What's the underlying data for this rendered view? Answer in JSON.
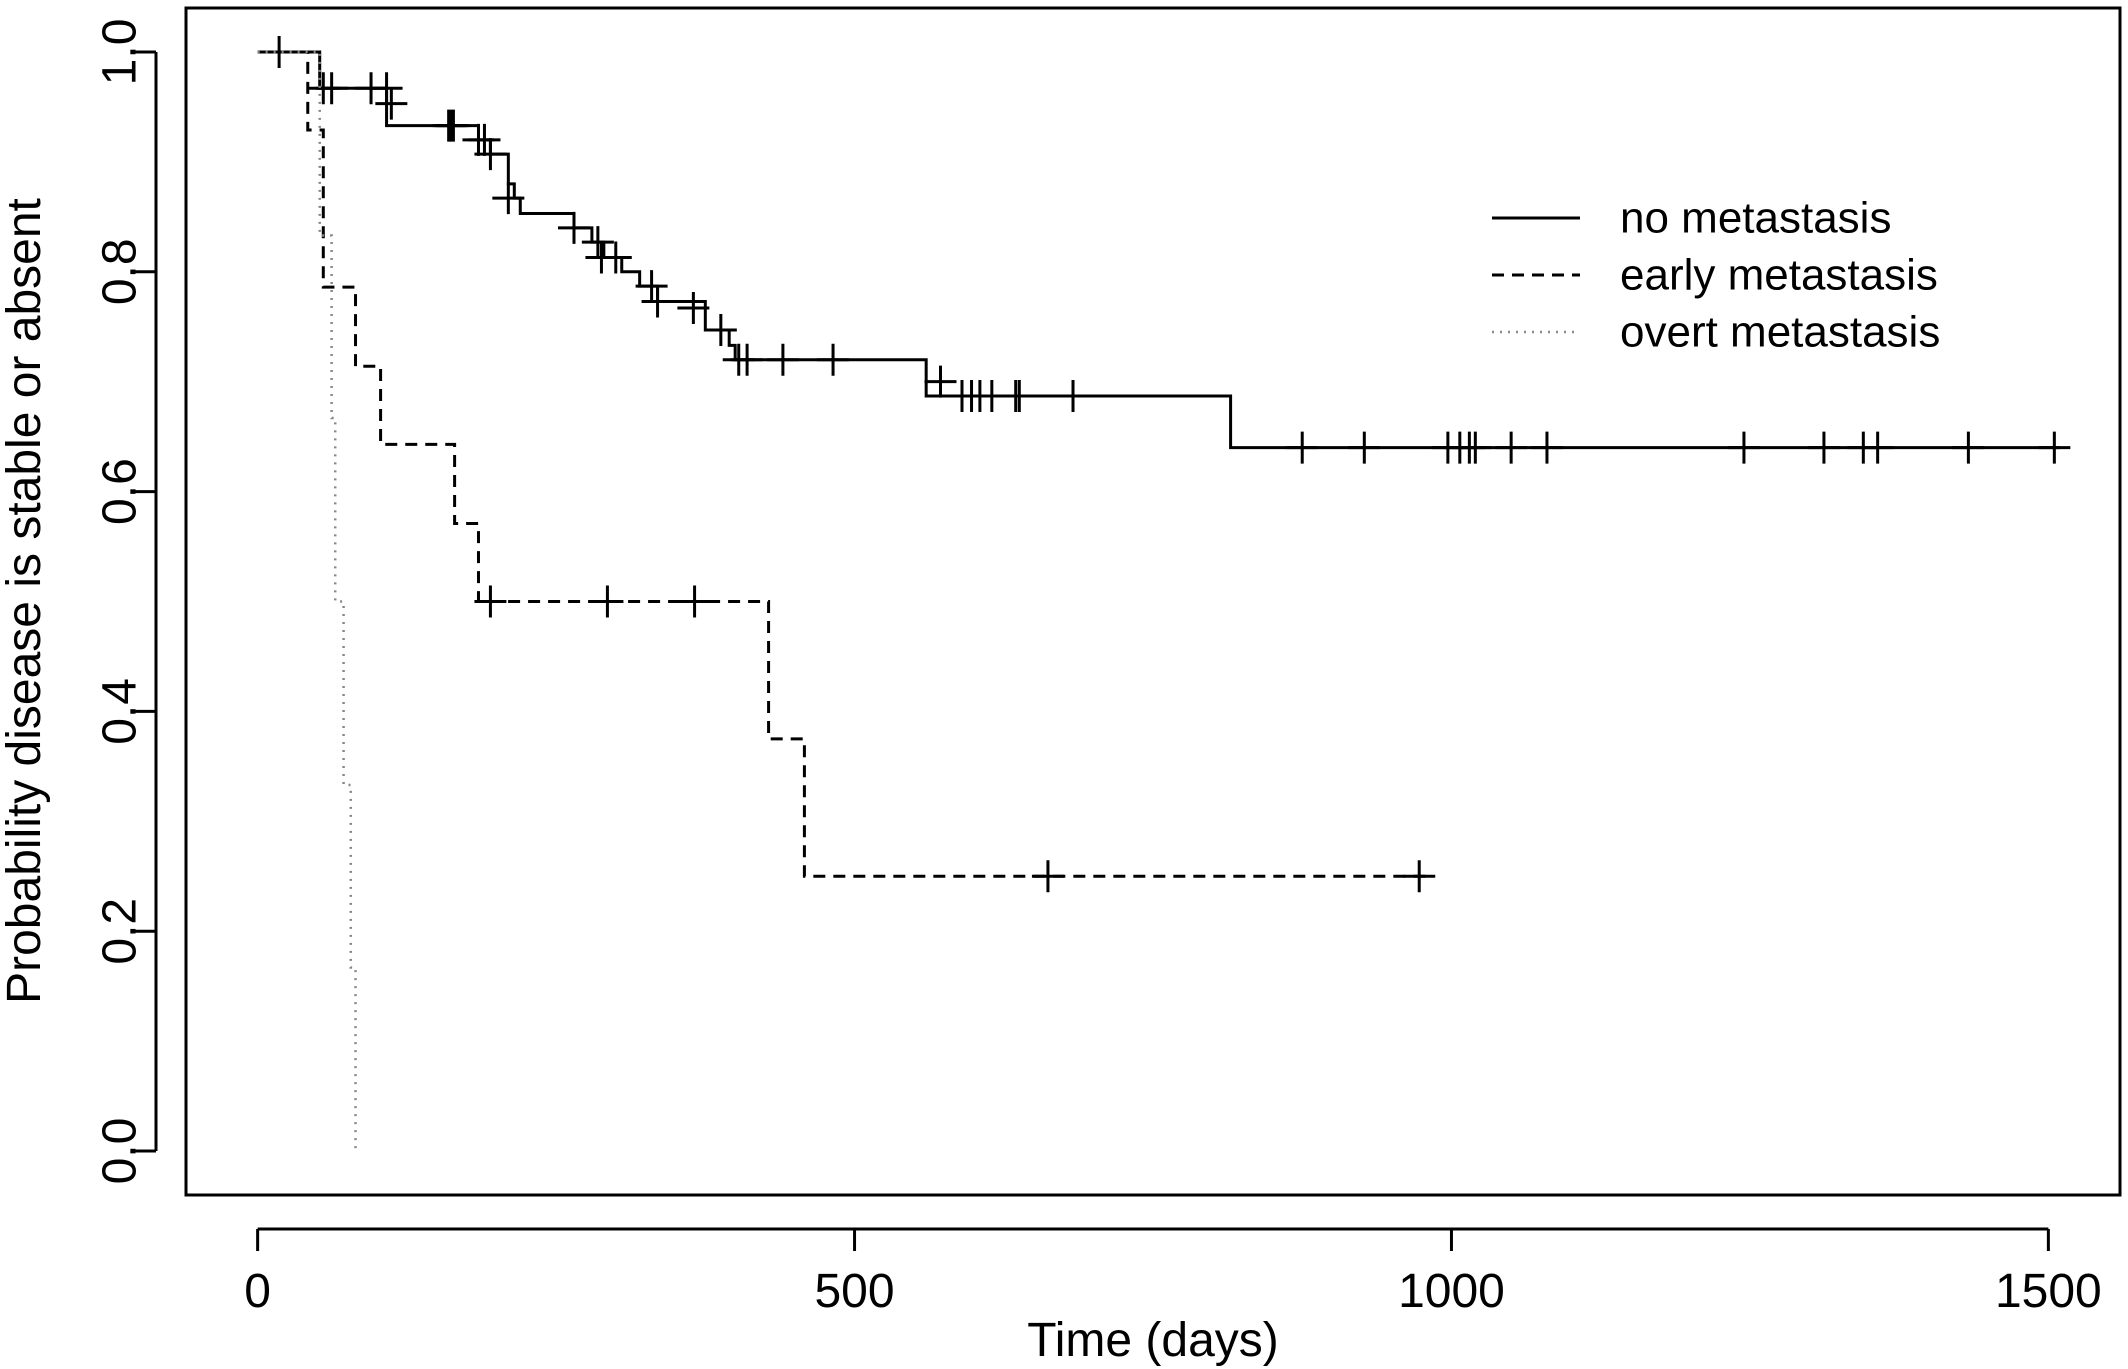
{
  "chart_data": {
    "type": "line",
    "title": "",
    "xlabel": "Time (days)",
    "ylabel": "Probability disease is stable or absent",
    "xlim": [
      -60,
      1560
    ],
    "ylim": [
      -0.04,
      1.04
    ],
    "xticks": [
      0,
      500,
      1000,
      1500
    ],
    "xtick_labels": [
      "0",
      "500",
      "1000",
      "1500"
    ],
    "yticks": [
      0.0,
      0.2,
      0.4,
      0.6,
      0.8,
      1.0
    ],
    "ytick_labels": [
      "0.0",
      "0.2",
      "0.4",
      "0.6",
      "0.8",
      "1.0"
    ],
    "grid": false,
    "legend_position": "top-right",
    "series": [
      {
        "name": "no metastasis",
        "linestyle": "solid",
        "color": "#000000",
        "steps": [
          [
            0,
            1.0
          ],
          [
            52,
            0.967
          ],
          [
            108,
            0.933
          ],
          [
            185,
            0.92
          ],
          [
            195,
            0.907
          ],
          [
            210,
            0.88
          ],
          [
            215,
            0.867
          ],
          [
            220,
            0.853
          ],
          [
            265,
            0.84
          ],
          [
            280,
            0.827
          ],
          [
            290,
            0.813
          ],
          [
            305,
            0.8
          ],
          [
            320,
            0.787
          ],
          [
            335,
            0.773
          ],
          [
            375,
            0.747
          ],
          [
            395,
            0.733
          ],
          [
            400,
            0.72
          ],
          [
            560,
            0.7
          ],
          [
            560,
            0.687
          ],
          [
            815,
            0.64
          ]
        ],
        "end_x": 1510,
        "censor": [
          [
            18,
            1.0
          ],
          [
            55,
            0.967
          ],
          [
            62,
            0.967
          ],
          [
            95,
            0.967
          ],
          [
            108,
            0.967
          ],
          [
            112,
            0.953
          ],
          [
            160,
            0.933
          ],
          [
            162,
            0.933
          ],
          [
            164,
            0.933
          ],
          [
            185,
            0.92
          ],
          [
            190,
            0.92
          ],
          [
            195,
            0.907
          ],
          [
            210,
            0.867
          ],
          [
            265,
            0.84
          ],
          [
            285,
            0.827
          ],
          [
            288,
            0.813
          ],
          [
            300,
            0.813
          ],
          [
            330,
            0.787
          ],
          [
            335,
            0.773
          ],
          [
            365,
            0.767
          ],
          [
            388,
            0.747
          ],
          [
            403,
            0.72
          ],
          [
            410,
            0.72
          ],
          [
            440,
            0.72
          ],
          [
            482,
            0.72
          ],
          [
            572,
            0.7
          ],
          [
            590,
            0.687
          ],
          [
            598,
            0.687
          ],
          [
            605,
            0.687
          ],
          [
            615,
            0.687
          ],
          [
            635,
            0.687
          ],
          [
            638,
            0.687
          ],
          [
            683,
            0.687
          ],
          [
            875,
            0.64
          ],
          [
            927,
            0.64
          ],
          [
            997,
            0.64
          ],
          [
            1007,
            0.64
          ],
          [
            1015,
            0.64
          ],
          [
            1020,
            0.64
          ],
          [
            1050,
            0.64
          ],
          [
            1080,
            0.64
          ],
          [
            1245,
            0.64
          ],
          [
            1312,
            0.64
          ],
          [
            1345,
            0.64
          ],
          [
            1357,
            0.64
          ],
          [
            1433,
            0.64
          ],
          [
            1505,
            0.64
          ]
        ]
      },
      {
        "name": "early metastasis",
        "linestyle": "dashed",
        "color": "#000000",
        "steps": [
          [
            0,
            1.0
          ],
          [
            42,
            0.929
          ],
          [
            55,
            0.786
          ],
          [
            82,
            0.714
          ],
          [
            103,
            0.643
          ],
          [
            165,
            0.571
          ],
          [
            185,
            0.5
          ],
          [
            428,
            0.375
          ],
          [
            458,
            0.25
          ]
        ],
        "end_x": 980,
        "censor": [
          [
            195,
            0.5
          ],
          [
            293,
            0.5
          ],
          [
            366,
            0.5
          ],
          [
            662,
            0.25
          ],
          [
            973,
            0.25
          ]
        ]
      },
      {
        "name": "overt metastasis",
        "linestyle": "dotted",
        "color": "#888888",
        "steps": [
          [
            0,
            1.0
          ],
          [
            52,
            0.833
          ],
          [
            62,
            0.667
          ],
          [
            65,
            0.5
          ],
          [
            72,
            0.333
          ],
          [
            78,
            0.167
          ],
          [
            82,
            0.0
          ]
        ],
        "end_x": 82,
        "censor": []
      }
    ]
  }
}
